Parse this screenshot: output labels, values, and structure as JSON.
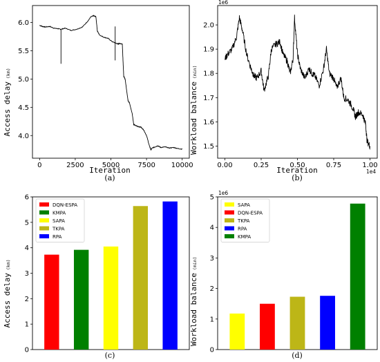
{
  "chart_data": [
    {
      "id": "a",
      "type": "line",
      "caption": "(a)",
      "xlabel": "Iteration",
      "ylabel": "Access delay",
      "ylabel_unit": "(km)",
      "xlim": [
        -500,
        10500
      ],
      "ylim": [
        3.6,
        6.3
      ],
      "xticks": [
        0,
        2500,
        5000,
        7500,
        10000
      ],
      "xtick_labels": [
        "0",
        "2500",
        "5000",
        "7500",
        "10000"
      ],
      "yticks": [
        4.0,
        4.5,
        5.0,
        5.5,
        6.0
      ],
      "ytick_labels": [
        "4.0",
        "4.5",
        "5.0",
        "5.5",
        "6.0"
      ],
      "line_color": "#000000",
      "series": [
        {
          "x": [
            0,
            200,
            400,
            700,
            1000,
            1300,
            1500,
            1800,
            2200,
            2600,
            3000,
            3400,
            3600,
            3800,
            3950,
            4050,
            4200,
            4500,
            4800,
            5100,
            5400,
            5500,
            5600,
            5800,
            5900,
            6000,
            6200,
            6300,
            6500,
            6600,
            6700,
            6900,
            7100,
            7300,
            7500,
            7700,
            7800,
            7900,
            8100,
            8300,
            8500,
            8800,
            9100,
            9400,
            9700,
            10000
          ],
          "y": [
            5.95,
            5.93,
            5.92,
            5.93,
            5.9,
            5.89,
            5.88,
            5.9,
            5.86,
            5.88,
            5.92,
            6.03,
            6.1,
            6.12,
            6.1,
            5.85,
            5.78,
            5.74,
            5.72,
            5.66,
            5.63,
            5.62,
            5.63,
            5.62,
            5.05,
            5.0,
            4.62,
            4.58,
            4.38,
            4.2,
            4.18,
            4.16,
            4.15,
            4.1,
            4.0,
            3.82,
            3.75,
            3.78,
            3.8,
            3.82,
            3.79,
            3.8,
            3.78,
            3.79,
            3.77,
            3.76
          ]
        }
      ],
      "spikes": [
        {
          "x": 1500,
          "y": [
            5.88,
            5.27
          ]
        },
        {
          "x": 5300,
          "y": [
            5.93,
            5.33
          ]
        }
      ]
    },
    {
      "id": "b",
      "type": "line",
      "caption": "(b)",
      "xlabel": "Iteration",
      "ylabel": "Workload balance",
      "ylabel_unit": "(min)",
      "y_exponent": "1e6",
      "x_exponent": "1e4",
      "xlim": [
        -0.05,
        1.05
      ],
      "ylim": [
        1.45,
        2.08
      ],
      "xticks": [
        0.0,
        0.25,
        0.5,
        0.75,
        1.0
      ],
      "xtick_labels": [
        "0.00",
        "0.25",
        "0.50",
        "0.75",
        "1.00"
      ],
      "yticks": [
        1.5,
        1.6,
        1.7,
        1.8,
        1.9,
        2.0
      ],
      "ytick_labels": [
        "1.5",
        "1.6",
        "1.7",
        "1.8",
        "1.9",
        "2.0"
      ],
      "line_color": "#000000",
      "series": [
        {
          "x": [
            0.0,
            0.02,
            0.05,
            0.08,
            0.1,
            0.12,
            0.15,
            0.18,
            0.2,
            0.22,
            0.25,
            0.27,
            0.3,
            0.32,
            0.35,
            0.38,
            0.4,
            0.43,
            0.45,
            0.47,
            0.48,
            0.5,
            0.52,
            0.55,
            0.58,
            0.6,
            0.62,
            0.65,
            0.68,
            0.7,
            0.72,
            0.75,
            0.77,
            0.8,
            0.82,
            0.85,
            0.88,
            0.9,
            0.92,
            0.95,
            0.97,
            0.98,
            1.0
          ],
          "y": [
            1.86,
            1.88,
            1.9,
            1.95,
            2.03,
            1.98,
            1.88,
            1.82,
            1.79,
            1.78,
            1.81,
            1.73,
            1.79,
            1.9,
            1.92,
            1.93,
            1.88,
            1.85,
            1.8,
            1.86,
            2.03,
            1.88,
            1.82,
            1.78,
            1.82,
            1.8,
            1.79,
            1.75,
            1.82,
            1.9,
            1.8,
            1.78,
            1.74,
            1.78,
            1.7,
            1.69,
            1.66,
            1.62,
            1.64,
            1.63,
            1.59,
            1.52,
            1.5
          ]
        }
      ]
    },
    {
      "id": "c",
      "type": "bar",
      "caption": "(c)",
      "xlabel": "",
      "ylabel": "Access delay",
      "ylabel_unit": "(km)",
      "ylim": [
        0,
        6
      ],
      "yticks": [
        0,
        1,
        2,
        3,
        4,
        5,
        6
      ],
      "ytick_labels": [
        "0",
        "1",
        "2",
        "3",
        "4",
        "5",
        "6"
      ],
      "categories": [
        "DQN-ESPA",
        "KMPA",
        "SAPA",
        "TKPA",
        "RPA"
      ],
      "values": [
        3.73,
        3.92,
        4.05,
        5.64,
        5.82
      ],
      "colors": [
        "#ff0000",
        "#008000",
        "#ffff00",
        "#bdb617",
        "#0000ff"
      ],
      "legend_position": "top-left"
    },
    {
      "id": "d",
      "type": "bar",
      "caption": "(d)",
      "xlabel": "",
      "ylabel": "Workload balance",
      "ylabel_unit": "(min)",
      "y_exponent": "1e6",
      "ylim": [
        0,
        5
      ],
      "yticks": [
        0,
        1,
        2,
        3,
        4,
        5
      ],
      "ytick_labels": [
        "0",
        "1",
        "2",
        "3",
        "4",
        "5"
      ],
      "categories": [
        "SAPA",
        "DQN-ESPA",
        "TKPA",
        "RPA",
        "KMPA"
      ],
      "values": [
        1.18,
        1.5,
        1.73,
        1.76,
        4.78
      ],
      "colors": [
        "#ffff00",
        "#ff0000",
        "#bdb617",
        "#0000ff",
        "#008000"
      ],
      "legend_position": "top-left"
    }
  ]
}
